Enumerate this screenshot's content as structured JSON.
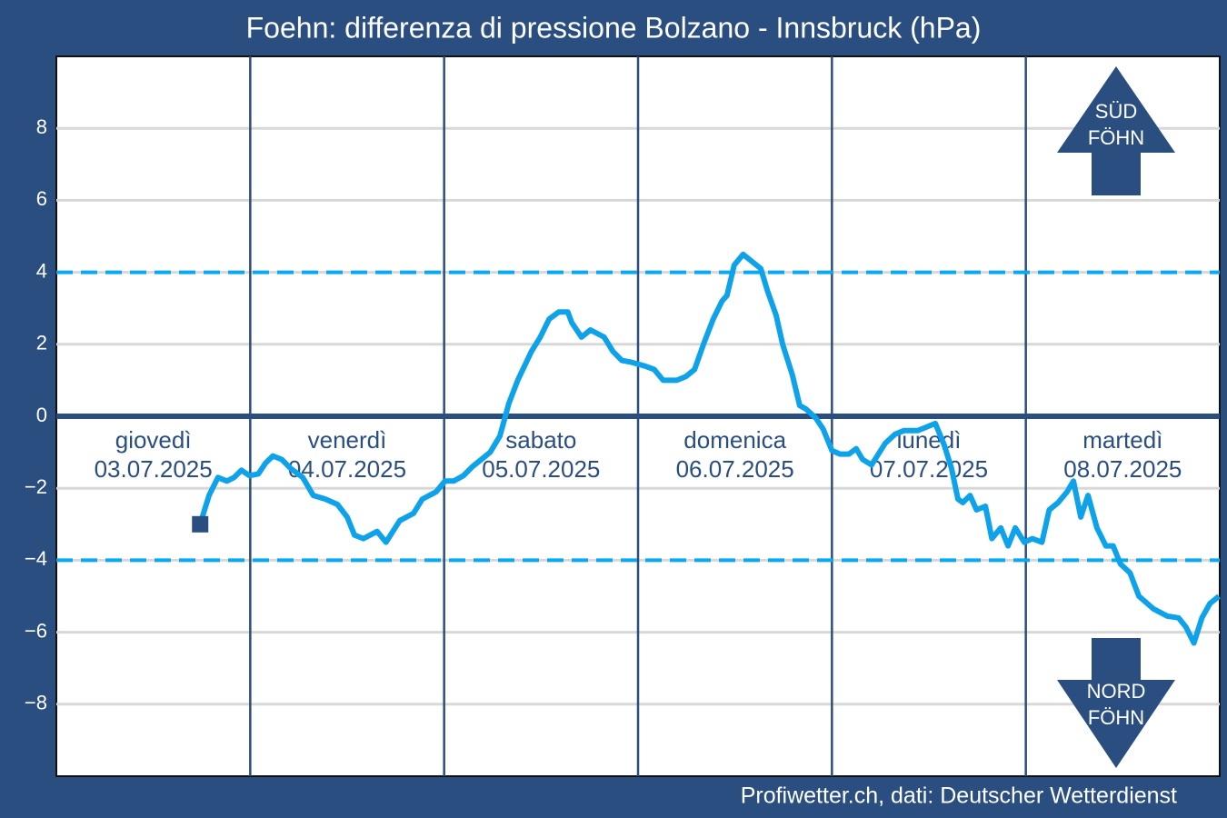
{
  "chart_data": {
    "type": "line",
    "title": "Foehn: differenza di pressione Bolzano - Innsbruck (hPa)",
    "source": "Profiwetter.ch, dati: Deutscher Wetterdienst",
    "days": [
      {
        "name": "giovedì",
        "date": "03.07.2025"
      },
      {
        "name": "venerdì",
        "date": "04.07.2025"
      },
      {
        "name": "sabato",
        "date": "05.07.2025"
      },
      {
        "name": "domenica",
        "date": "06.07.2025"
      },
      {
        "name": "lunedì",
        "date": "07.07.2025"
      },
      {
        "name": "martedì",
        "date": "08.07.2025"
      }
    ],
    "xlim": [
      0,
      144
    ],
    "ylim": [
      -10,
      10
    ],
    "yticks": [
      {
        "value": -8,
        "label": "−8"
      },
      {
        "value": -6,
        "label": "−6"
      },
      {
        "value": -4,
        "label": "−4"
      },
      {
        "value": -2,
        "label": "−2"
      },
      0,
      2,
      4,
      6,
      8
    ],
    "grid": true,
    "reference_lines": [
      4,
      -4
    ],
    "color": "#0ea2ea",
    "upper_label": [
      "SÜD",
      "FÖHN"
    ],
    "lower_label": [
      "NORD",
      "FÖHN"
    ],
    "x": [
      17.8,
      18.9,
      20.0,
      21.1,
      22.0,
      22.9,
      23.9,
      25.0,
      25.9,
      26.8,
      27.9,
      29.0,
      30.5,
      31.8,
      33.3,
      34.8,
      36.0,
      36.9,
      38.0,
      39.7,
      40.8,
      42.5,
      44.2,
      45.3,
      47.0,
      48.1,
      49.2,
      50.4,
      51.5,
      52.6,
      53.7,
      54.9,
      56.0,
      57.1,
      58.8,
      59.9,
      61.0,
      62.2,
      63.3,
      63.8,
      65.0,
      66.1,
      67.8,
      68.9,
      70.0,
      71.2,
      72.8,
      74.0,
      75.1,
      76.8,
      77.9,
      79.0,
      80.1,
      81.3,
      82.4,
      83.0,
      83.9,
      85.0,
      86.1,
      87.2,
      88.0,
      89.1,
      89.9,
      91.1,
      92.0,
      92.8,
      94.0,
      94.9,
      96.0,
      97.0,
      98.1,
      99.0,
      99.8,
      100.9,
      102.6,
      103.8,
      104.9,
      106.6,
      107.7,
      108.8,
      109.9,
      110.8,
      111.6,
      112.2,
      113.1,
      113.9,
      115.0,
      115.8,
      116.9,
      117.8,
      118.7,
      119.8,
      120.8,
      122.0,
      122.9,
      124.0,
      125.1,
      125.9,
      126.8,
      127.7,
      128.8,
      129.9,
      130.8,
      131.7,
      132.9,
      134.0,
      135.8,
      137.5,
      138.9,
      139.8,
      140.8,
      141.8,
      142.8,
      143.9
    ],
    "values": [
      -3.0,
      -2.2,
      -1.7,
      -1.8,
      -1.7,
      -1.5,
      -1.65,
      -1.6,
      -1.3,
      -1.1,
      -1.2,
      -1.45,
      -1.7,
      -2.2,
      -2.3,
      -2.45,
      -2.8,
      -3.3,
      -3.4,
      -3.2,
      -3.5,
      -2.9,
      -2.7,
      -2.3,
      -2.1,
      -1.8,
      -1.8,
      -1.65,
      -1.4,
      -1.2,
      -1.0,
      -0.55,
      0.35,
      1.0,
      1.8,
      2.2,
      2.7,
      2.9,
      2.9,
      2.6,
      2.2,
      2.4,
      2.2,
      1.8,
      1.55,
      1.5,
      1.4,
      1.3,
      1.0,
      1.0,
      1.1,
      1.3,
      2.0,
      2.7,
      3.2,
      3.35,
      4.2,
      4.5,
      4.3,
      4.1,
      3.5,
      2.8,
      2.0,
      1.15,
      0.3,
      0.2,
      -0.05,
      -0.35,
      -0.95,
      -1.05,
      -1.05,
      -0.9,
      -1.2,
      -1.35,
      -0.75,
      -0.5,
      -0.4,
      -0.4,
      -0.3,
      -0.2,
      -0.8,
      -1.45,
      -2.3,
      -2.4,
      -2.2,
      -2.6,
      -2.5,
      -3.4,
      -3.1,
      -3.6,
      -3.1,
      -3.5,
      -3.4,
      -3.5,
      -2.6,
      -2.4,
      -2.1,
      -1.8,
      -2.8,
      -2.2,
      -3.1,
      -3.6,
      -3.6,
      -4.1,
      -4.35,
      -5.0,
      -5.35,
      -5.55,
      -5.6,
      -5.85,
      -6.3,
      -5.6,
      -5.2,
      -5.0
    ]
  }
}
